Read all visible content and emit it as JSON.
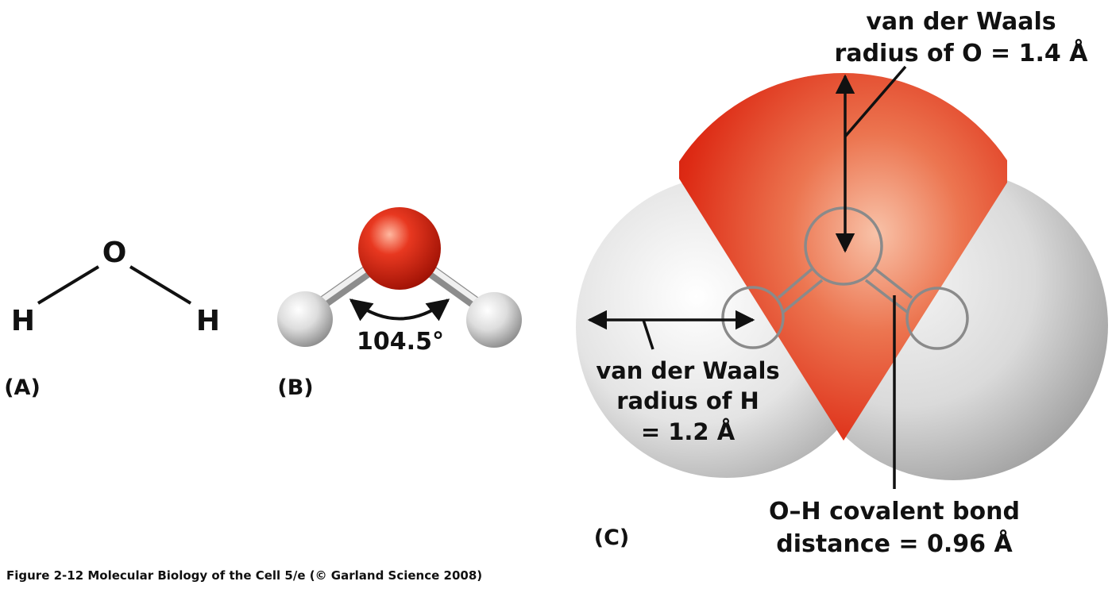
{
  "panels": {
    "a": {
      "label": "(A)",
      "atoms": {
        "oxygen": "O",
        "hydrogen_left": "H",
        "hydrogen_right": "H"
      }
    },
    "b": {
      "label": "(B)",
      "bond_angle": "104.5°"
    },
    "c": {
      "label": "(C)",
      "oxygen_radius": {
        "line1": "van der Waals",
        "line2": "radius of O = 1.4 Å"
      },
      "hydrogen_radius": {
        "line1": "van der Waals",
        "line2": "radius of H",
        "line3": "= 1.2 Å"
      },
      "bond_distance": {
        "line1": "O–H covalent bond",
        "line2": "distance = 0.96 Å"
      }
    }
  },
  "caption": "Figure 2-12  Molecular Biology of the Cell 5/e (© Garland Science 2008)",
  "colors": {
    "oxygen": "#e02010",
    "hydrogen": "#e6e6e6",
    "outline": "#8a8a8a",
    "text": "#111111"
  }
}
